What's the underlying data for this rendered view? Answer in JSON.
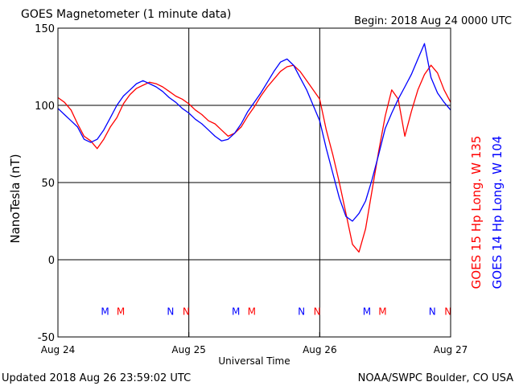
{
  "header": {
    "title": "GOES Magnetometer (1 minute data)",
    "begin": "Begin:  2018 Aug 24 0000 UTC"
  },
  "footer": {
    "updated": "Updated 2018 Aug 26 23:59:02 UTC",
    "source": "NOAA/SWPC Boulder, CO USA"
  },
  "colors": {
    "goes15": "#ff0000",
    "goes14": "#0000ff",
    "axis": "#000000",
    "background": "#ffffff"
  },
  "chart_data": {
    "type": "line",
    "title": "GOES Magnetometer (1 minute data)",
    "xlabel": "Universal Time",
    "ylabel": "NanoTesla (nT)",
    "x_unit": "days since 2018 Aug 24 0000 UTC",
    "xlim": [
      0,
      3
    ],
    "ylim": [
      -50,
      150
    ],
    "x_ticks": [
      0,
      1,
      2,
      3
    ],
    "x_tick_labels": [
      "Aug 24",
      "Aug 25",
      "Aug 26",
      "Aug 27"
    ],
    "y_ticks": [
      -50,
      0,
      50,
      100,
      150
    ],
    "y_tick_labels": [
      "-50",
      "0",
      "50",
      "100",
      "150"
    ],
    "grid": "major lines at every tick",
    "legend": "right side, rotated vertical",
    "series": [
      {
        "name": "GOES 15 Hp  Long. W 135",
        "color": "#ff0000",
        "x": [
          0.0,
          0.05,
          0.1,
          0.15,
          0.2,
          0.25,
          0.3,
          0.35,
          0.4,
          0.45,
          0.5,
          0.55,
          0.6,
          0.65,
          0.7,
          0.75,
          0.8,
          0.85,
          0.9,
          0.95,
          1.0,
          1.05,
          1.1,
          1.15,
          1.2,
          1.25,
          1.3,
          1.35,
          1.4,
          1.45,
          1.5,
          1.55,
          1.6,
          1.65,
          1.7,
          1.75,
          1.8,
          1.85,
          1.9,
          1.95,
          2.0,
          2.05,
          2.1,
          2.15,
          2.2,
          2.25,
          2.3,
          2.35,
          2.4,
          2.45,
          2.5,
          2.55,
          2.6,
          2.65,
          2.7,
          2.75,
          2.8,
          2.85,
          2.9,
          2.95,
          3.0
        ],
        "y": [
          105,
          102,
          97,
          88,
          80,
          77,
          72,
          78,
          86,
          92,
          101,
          107,
          111,
          113,
          115,
          114,
          112,
          109,
          106,
          104,
          101,
          97,
          94,
          90,
          88,
          84,
          80,
          82,
          86,
          93,
          99,
          106,
          112,
          117,
          122,
          125,
          126,
          122,
          116,
          110,
          104,
          84,
          68,
          50,
          30,
          10,
          5,
          20,
          45,
          70,
          93,
          110,
          104,
          80,
          96,
          110,
          120,
          126,
          121,
          110,
          102
        ]
      },
      {
        "name": "GOES 14 Hp  Long. W 104",
        "color": "#0000ff",
        "x": [
          0.0,
          0.05,
          0.1,
          0.15,
          0.2,
          0.25,
          0.3,
          0.35,
          0.4,
          0.45,
          0.5,
          0.55,
          0.6,
          0.65,
          0.7,
          0.75,
          0.8,
          0.85,
          0.9,
          0.95,
          1.0,
          1.05,
          1.1,
          1.15,
          1.2,
          1.25,
          1.3,
          1.35,
          1.4,
          1.45,
          1.5,
          1.55,
          1.6,
          1.65,
          1.7,
          1.75,
          1.8,
          1.85,
          1.9,
          1.95,
          2.0,
          2.05,
          2.1,
          2.15,
          2.2,
          2.25,
          2.3,
          2.35,
          2.4,
          2.45,
          2.5,
          2.55,
          2.6,
          2.65,
          2.7,
          2.75,
          2.8,
          2.85,
          2.9,
          2.95,
          3.0
        ],
        "y": [
          98,
          94,
          90,
          86,
          78,
          76,
          78,
          84,
          92,
          100,
          106,
          110,
          114,
          116,
          114,
          112,
          109,
          105,
          102,
          98,
          95,
          91,
          88,
          84,
          80,
          77,
          78,
          82,
          88,
          96,
          102,
          108,
          115,
          122,
          128,
          130,
          126,
          118,
          110,
          100,
          90,
          72,
          56,
          40,
          28,
          25,
          30,
          38,
          52,
          68,
          85,
          95,
          104,
          112,
          120,
          130,
          140,
          118,
          108,
          102,
          97
        ]
      }
    ],
    "annotations": {
      "y_value": -33,
      "markers": [
        {
          "label": "M",
          "x": 0.36,
          "color": "#0000ff"
        },
        {
          "label": "M",
          "x": 0.48,
          "color": "#ff0000"
        },
        {
          "label": "N",
          "x": 0.86,
          "color": "#0000ff"
        },
        {
          "label": "N",
          "x": 0.98,
          "color": "#ff0000"
        },
        {
          "label": "M",
          "x": 1.36,
          "color": "#0000ff"
        },
        {
          "label": "M",
          "x": 1.48,
          "color": "#ff0000"
        },
        {
          "label": "N",
          "x": 1.86,
          "color": "#0000ff"
        },
        {
          "label": "N",
          "x": 1.98,
          "color": "#ff0000"
        },
        {
          "label": "M",
          "x": 2.36,
          "color": "#0000ff"
        },
        {
          "label": "M",
          "x": 2.48,
          "color": "#ff0000"
        },
        {
          "label": "N",
          "x": 2.86,
          "color": "#0000ff"
        },
        {
          "label": "N",
          "x": 2.98,
          "color": "#ff0000"
        }
      ]
    }
  }
}
